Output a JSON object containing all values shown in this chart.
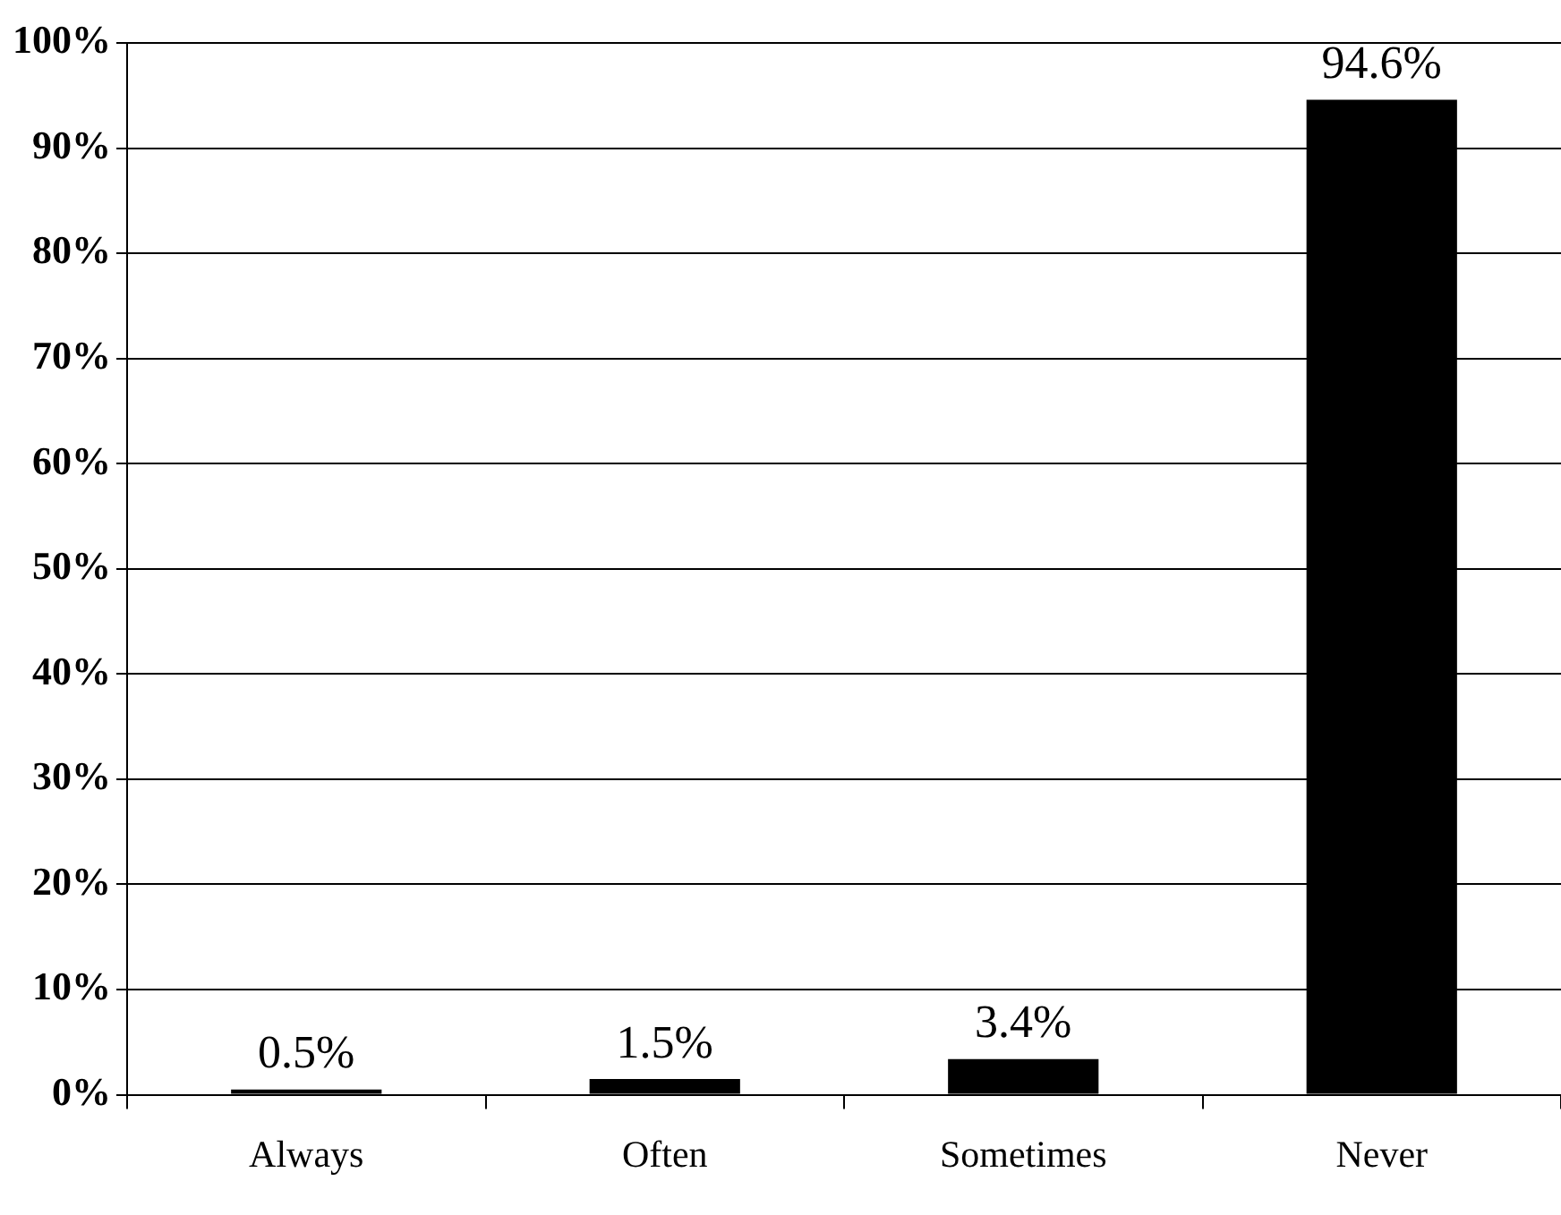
{
  "chart_data": {
    "type": "bar",
    "categories": [
      "Always",
      "Often",
      "Sometimes",
      "Never"
    ],
    "values": [
      0.5,
      1.5,
      3.4,
      94.6
    ],
    "color": "#000000",
    "value_labels": [
      "0.5%",
      "1.5%",
      "3.4%",
      "94.6%"
    ],
    "ylim": [
      0,
      100
    ],
    "yticks": [
      {
        "value": 0,
        "label": "0%"
      },
      {
        "value": 10,
        "label": "10%"
      },
      {
        "value": 20,
        "label": "20%"
      },
      {
        "value": 30,
        "label": "30%"
      },
      {
        "value": 40,
        "label": "40%"
      },
      {
        "value": 50,
        "label": "50%"
      },
      {
        "value": 60,
        "label": "60%"
      },
      {
        "value": 70,
        "label": "70%"
      },
      {
        "value": 80,
        "label": "80%"
      },
      {
        "value": 90,
        "label": "90%"
      },
      {
        "value": 100,
        "label": "100%"
      }
    ],
    "grid": "y",
    "legend": false
  }
}
